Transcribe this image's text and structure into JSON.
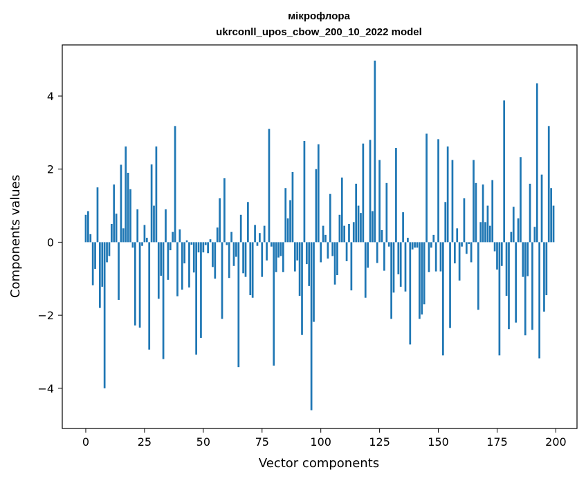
{
  "chart_data": {
    "type": "bar",
    "title": "мікрофлора",
    "subtitle": "ukrconll_upos_cbow_200_10_2022 model",
    "xlabel": "Vector components",
    "ylabel": "Components values",
    "xlim": [
      -10,
      209
    ],
    "ylim": [
      -5.1,
      5.4
    ],
    "xticks": [
      0,
      25,
      50,
      75,
      100,
      125,
      150,
      175,
      200
    ],
    "yticks": [
      -4,
      -2,
      0,
      2,
      4
    ],
    "grid": false,
    "bar_color": "#1f77b4",
    "values": [
      0.75,
      0.85,
      0.22,
      -1.18,
      -0.73,
      1.5,
      -1.8,
      -1.22,
      -4.0,
      -0.55,
      -0.38,
      0.5,
      1.58,
      0.78,
      -1.58,
      2.12,
      0.38,
      2.62,
      1.9,
      1.45,
      -0.15,
      -2.28,
      0.9,
      -2.34,
      -0.1,
      0.47,
      0.12,
      -2.94,
      2.13,
      1.0,
      2.62,
      -1.55,
      -0.92,
      -3.2,
      0.9,
      -1.03,
      -0.22,
      0.28,
      3.18,
      -1.48,
      0.35,
      -1.3,
      -0.58,
      0.05,
      -1.24,
      -0.07,
      -0.83,
      -3.08,
      -0.28,
      -2.62,
      -0.28,
      -0.08,
      -0.3,
      0.08,
      -0.68,
      -1.0,
      0.4,
      1.2,
      -2.1,
      1.75,
      -0.08,
      -0.98,
      0.28,
      -0.65,
      -0.4,
      -3.42,
      0.75,
      -0.85,
      -0.95,
      1.1,
      -1.45,
      -1.52,
      0.47,
      -0.1,
      0.25,
      -0.95,
      0.45,
      -0.5,
      3.1,
      -0.12,
      -3.38,
      -0.82,
      -0.42,
      -0.38,
      -0.82,
      1.48,
      0.65,
      1.15,
      1.92,
      -0.8,
      -0.5,
      -1.47,
      -2.54,
      2.77,
      -0.6,
      -1.2,
      -4.6,
      -2.18,
      2.0,
      2.68,
      -0.55,
      0.45,
      0.2,
      -0.45,
      1.32,
      -0.38,
      -1.16,
      -0.9,
      0.75,
      1.77,
      0.45,
      -0.52,
      0.5,
      -1.32,
      0.55,
      1.6,
      1.0,
      0.8,
      2.7,
      -1.52,
      -0.7,
      2.8,
      0.85,
      4.97,
      -0.57,
      2.25,
      0.33,
      -0.78,
      1.62,
      -0.12,
      -2.1,
      -1.38,
      2.58,
      -0.88,
      -1.22,
      0.82,
      -1.35,
      0.12,
      -2.8,
      -0.2,
      -0.15,
      -0.15,
      -2.1,
      -1.98,
      -1.7,
      2.97,
      -0.82,
      -0.15,
      0.2,
      -0.8,
      2.82,
      -0.8,
      -3.1,
      1.1,
      2.62,
      -2.35,
      2.25,
      -0.58,
      0.38,
      -1.05,
      -0.12,
      1.2,
      -0.32,
      -0.05,
      -0.55,
      2.25,
      1.62,
      -1.85,
      0.55,
      1.58,
      0.55,
      1.0,
      0.45,
      1.7,
      -0.25,
      -0.75,
      -3.1,
      -0.65,
      3.88,
      -1.47,
      -2.38,
      0.28,
      0.97,
      -2.2,
      0.65,
      2.33,
      -0.95,
      -2.55,
      -0.93,
      1.6,
      -2.4,
      0.42,
      4.35,
      -3.18,
      1.85,
      -1.9,
      -1.45,
      3.18,
      1.48,
      1.0
    ]
  }
}
